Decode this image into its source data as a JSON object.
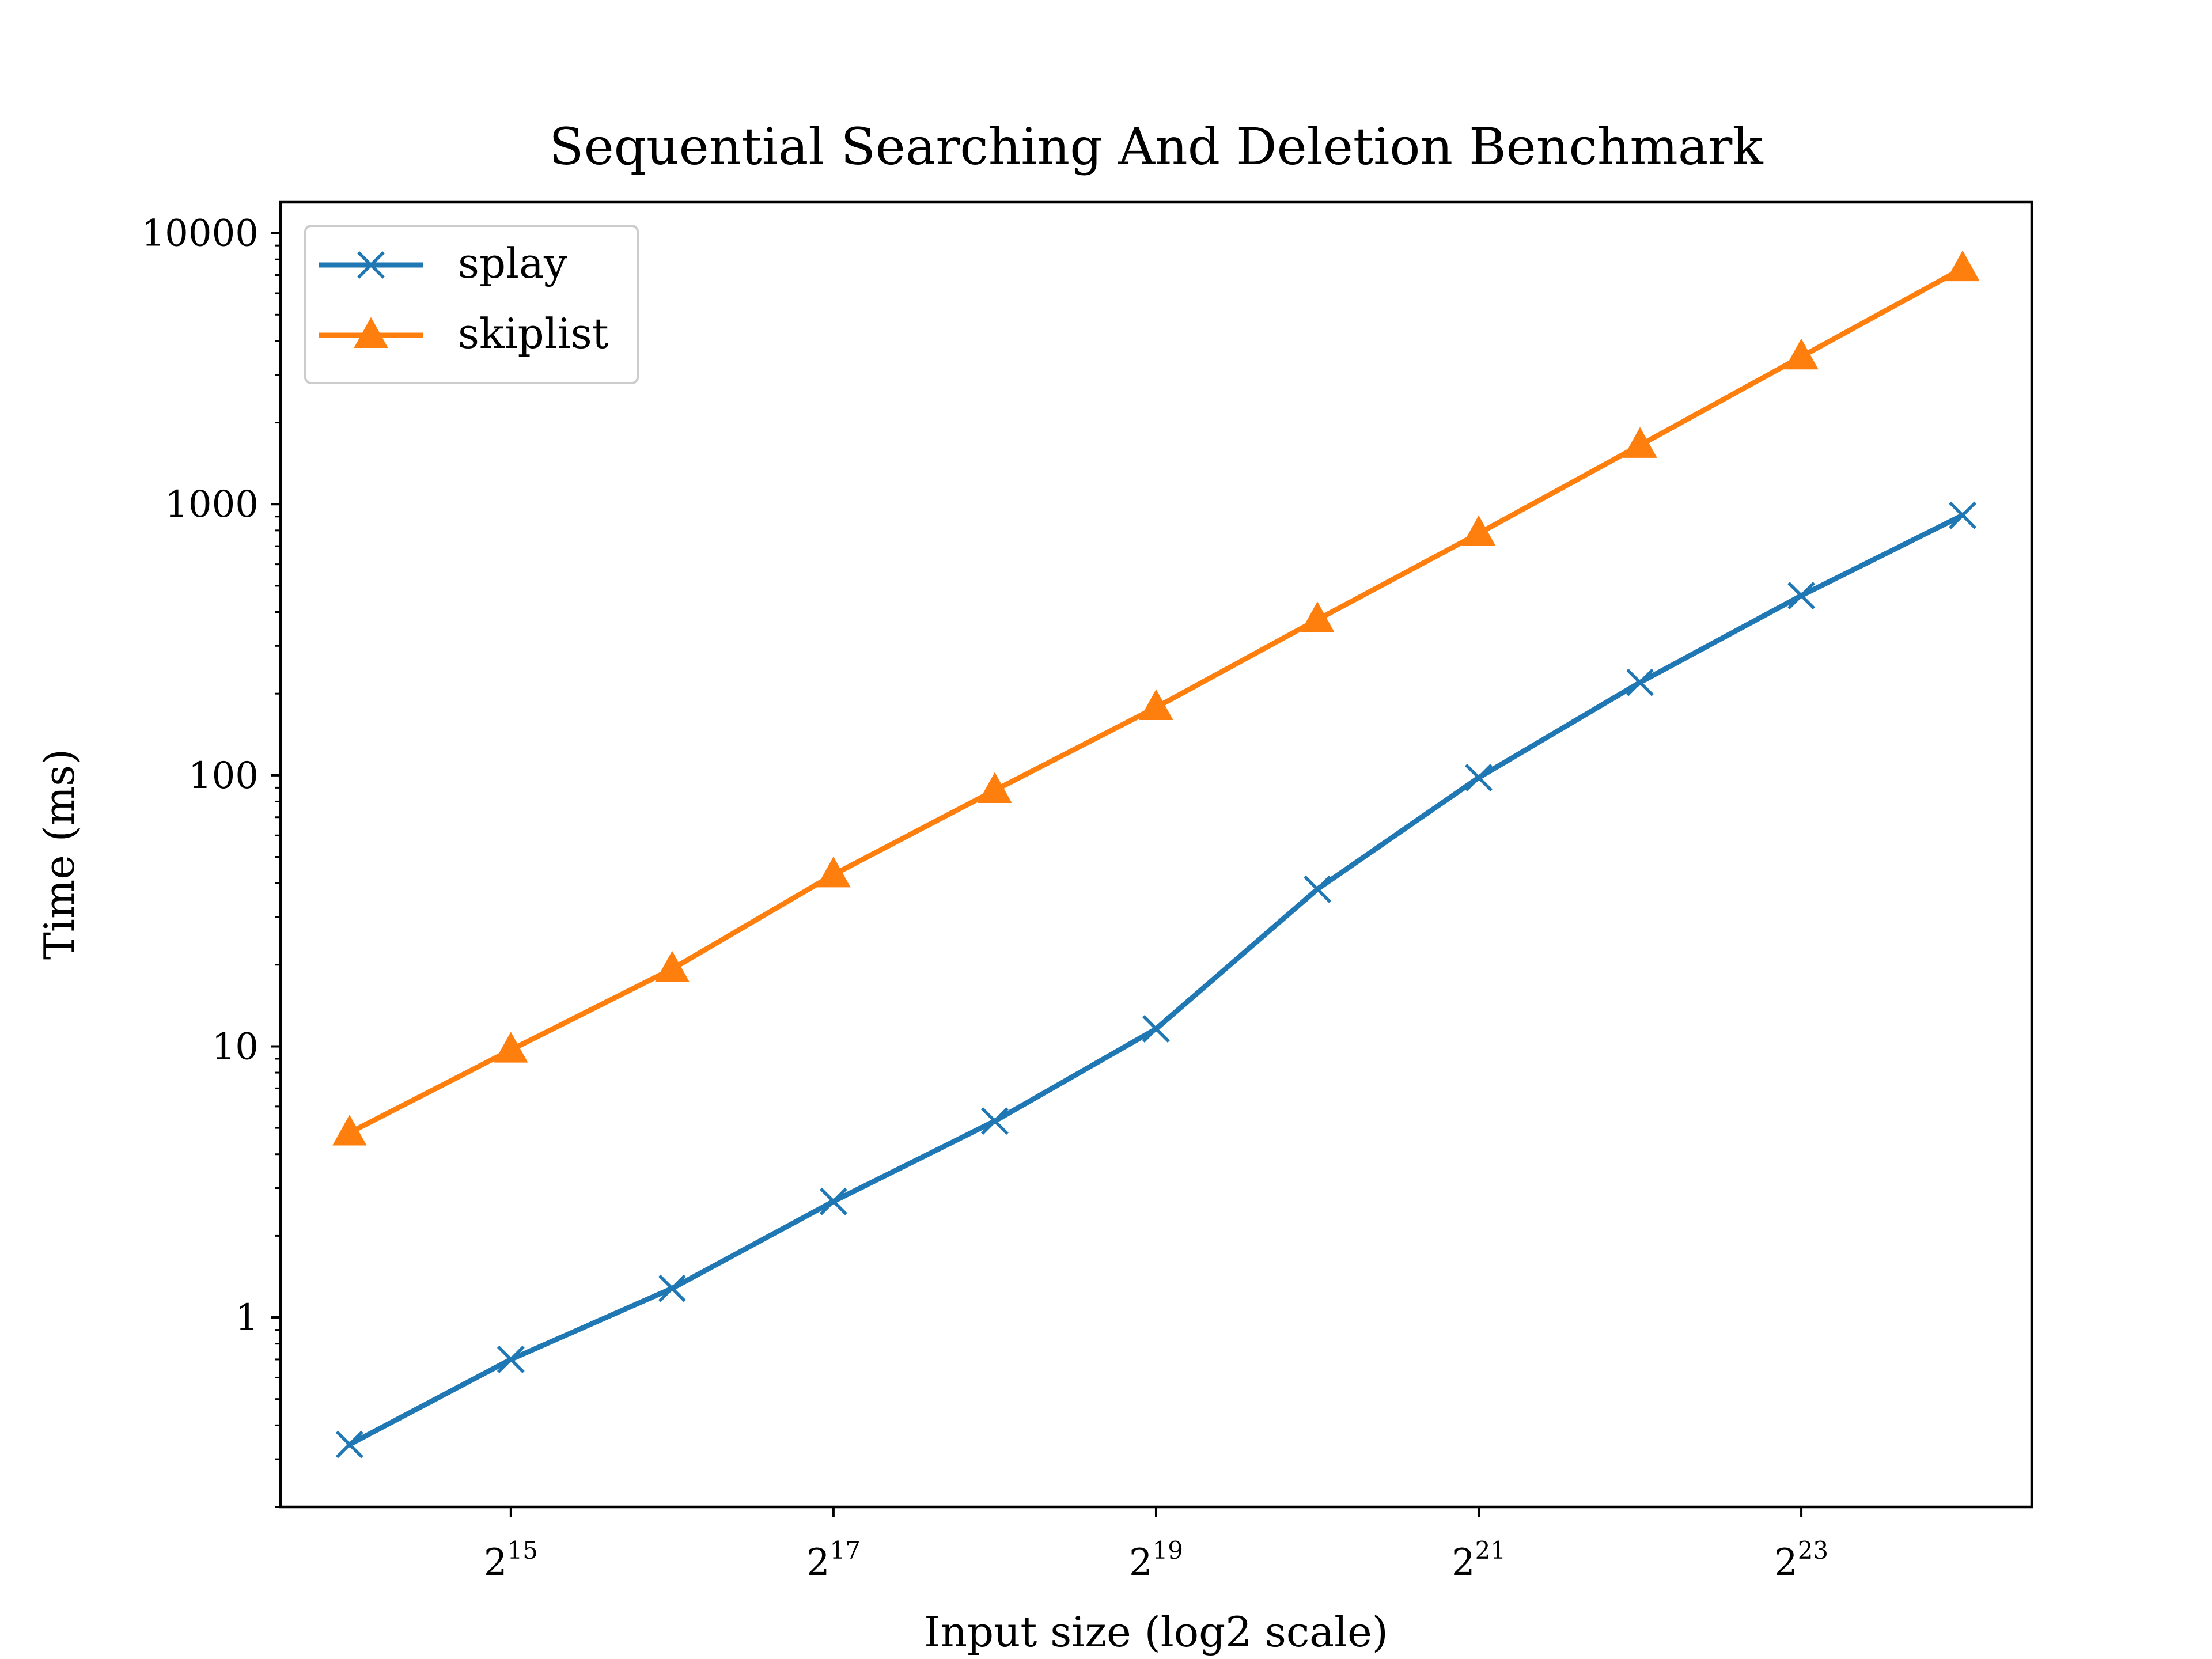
{
  "chart_data": {
    "type": "line",
    "title": "Sequential Searching And Deletion Benchmark",
    "xlabel": "Input size (log2 scale)",
    "ylabel": "Time (ms)",
    "x_scale": "log2",
    "y_scale": "log10",
    "x": [
      16384,
      32768,
      65536,
      131072,
      262144,
      524288,
      1048576,
      2097152,
      4194304,
      8388608,
      16777216
    ],
    "xlim": [
      12179,
      22574429
    ],
    "ylim": [
      0.2,
      13000
    ],
    "x_ticks": [
      {
        "value": 32768,
        "base": "2",
        "exp": "15"
      },
      {
        "value": 131072,
        "base": "2",
        "exp": "17"
      },
      {
        "value": 524288,
        "base": "2",
        "exp": "19"
      },
      {
        "value": 2097152,
        "base": "2",
        "exp": "21"
      },
      {
        "value": 8388608,
        "base": "2",
        "exp": "23"
      }
    ],
    "y_ticks": [
      {
        "value": 1,
        "label": "1"
      },
      {
        "value": 10,
        "label": "10"
      },
      {
        "value": 100,
        "label": "100"
      },
      {
        "value": 1000,
        "label": "1000"
      },
      {
        "value": 10000,
        "label": "10000"
      }
    ],
    "grid": false,
    "legend": "upper left",
    "series": [
      {
        "name": "splay",
        "color": "#1f77b4",
        "marker": "x",
        "values": [
          0.34,
          0.7,
          1.28,
          2.68,
          5.3,
          11.6,
          38.0,
          98.0,
          220.0,
          460.0,
          910.0
        ]
      },
      {
        "name": "skiplist",
        "color": "#ff7f0e",
        "marker": "triangle",
        "values": [
          4.8,
          9.7,
          19.3,
          43.0,
          88.0,
          178.0,
          375.0,
          780.0,
          1650.0,
          3500.0,
          7400.0
        ]
      }
    ]
  }
}
